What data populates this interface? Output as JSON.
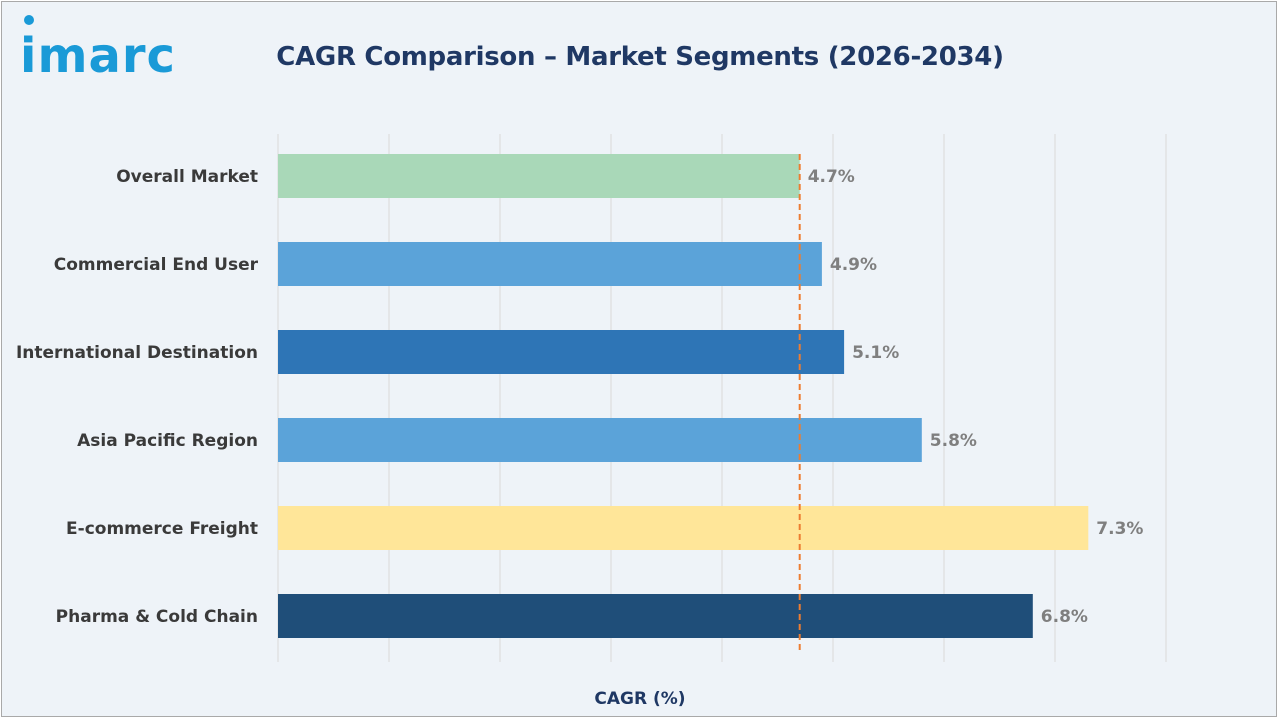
{
  "brand": {
    "logo_text": "imarc",
    "color": "#1a9ad7"
  },
  "colors": {
    "title": "#1f3864",
    "reference_line": "#ed7d31",
    "gridline": "#d9d9d9"
  },
  "chart_data": {
    "type": "bar",
    "orientation": "horizontal",
    "title": "CAGR Comparison – Market Segments (2026-2034)",
    "xlabel": "CAGR (%)",
    "ylabel": "",
    "xlim": [
      0,
      8
    ],
    "grid": true,
    "categories": [
      "Overall Market",
      "Commercial End User",
      "International Destination",
      "Asia Pacific Region",
      "E-commerce Freight",
      "Pharma & Cold Chain"
    ],
    "values": [
      4.7,
      4.9,
      5.1,
      5.8,
      7.3,
      6.8
    ],
    "value_labels": [
      "4.7%",
      "4.9%",
      "5.1%",
      "5.8%",
      "7.3%",
      "6.8%"
    ],
    "bar_colors": [
      "#a9d8b8",
      "#5ba3d9",
      "#2e75b6",
      "#5ba3d9",
      "#ffe699",
      "#1f4e79"
    ],
    "reference_line": {
      "value": 4.7,
      "style": "dashed",
      "color": "#ed7d31"
    }
  }
}
